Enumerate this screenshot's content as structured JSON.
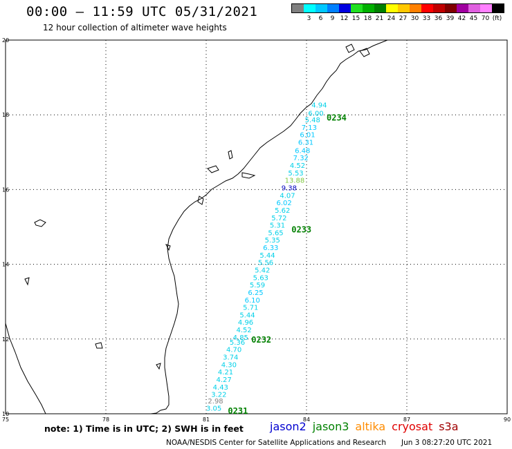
{
  "header": {
    "title": "00:00 – 11:59 UTC 05/31/2021",
    "subtitle": "12 hour collection of altimeter wave heights"
  },
  "legend": {
    "unit": "(ft)",
    "items": [
      {
        "label": "",
        "color": "#808080"
      },
      {
        "label": "3",
        "color": "#00ffff"
      },
      {
        "label": "6",
        "color": "#00c8ff"
      },
      {
        "label": "9",
        "color": "#0080ff"
      },
      {
        "label": "12",
        "color": "#0000e0"
      },
      {
        "label": "15",
        "color": "#20e020"
      },
      {
        "label": "18",
        "color": "#00b000"
      },
      {
        "label": "21",
        "color": "#008000"
      },
      {
        "label": "24",
        "color": "#ffff00"
      },
      {
        "label": "27",
        "color": "#ffc800"
      },
      {
        "label": "30",
        "color": "#ff8000"
      },
      {
        "label": "33",
        "color": "#ff0000"
      },
      {
        "label": "36",
        "color": "#c00000"
      },
      {
        "label": "39",
        "color": "#800000"
      },
      {
        "label": "42",
        "color": "#a000a0"
      },
      {
        "label": "45",
        "color": "#e060e0"
      },
      {
        "label": "70",
        "color": "#ff80ff"
      },
      {
        "label": "",
        "color": "#000000"
      }
    ]
  },
  "map": {
    "lon_ticks": [
      "75",
      "78",
      "81",
      "84",
      "87",
      "90"
    ],
    "lat_ticks": [
      "20",
      "18",
      "16",
      "14",
      "12",
      "10"
    ],
    "pass_labels": [
      {
        "label": "0234",
        "lon": 84.6,
        "lat": 17.85
      },
      {
        "label": "0233",
        "lon": 83.55,
        "lat": 14.85
      },
      {
        "label": "0232",
        "lon": 82.35,
        "lat": 11.9
      },
      {
        "label": "0231",
        "lon": 81.65,
        "lat": 10.0
      }
    ],
    "wave_heights": [
      {
        "v": "4.94",
        "lon": 84.15,
        "lat": 18.2,
        "c": "#00d0e8"
      },
      {
        "v": "6.00",
        "lon": 84.05,
        "lat": 17.98,
        "c": "#00d0e8"
      },
      {
        "v": "5.48",
        "lon": 83.95,
        "lat": 17.8,
        "c": "#00d0e8"
      },
      {
        "v": "7.13",
        "lon": 83.85,
        "lat": 17.6,
        "c": "#00c8ff"
      },
      {
        "v": "6.01",
        "lon": 83.8,
        "lat": 17.4,
        "c": "#00c8ff"
      },
      {
        "v": "6.31",
        "lon": 83.75,
        "lat": 17.2,
        "c": "#00c8ff"
      },
      {
        "v": "6.48",
        "lon": 83.65,
        "lat": 16.98,
        "c": "#00c8ff"
      },
      {
        "v": "7.32",
        "lon": 83.6,
        "lat": 16.78,
        "c": "#00c8ff"
      },
      {
        "v": "4.52",
        "lon": 83.5,
        "lat": 16.58,
        "c": "#00d0e8"
      },
      {
        "v": "5.53",
        "lon": 83.45,
        "lat": 16.38,
        "c": "#00d0e8"
      },
      {
        "v": "13.88",
        "lon": 83.35,
        "lat": 16.18,
        "c": "#80c840"
      },
      {
        "v": "9.38",
        "lon": 83.25,
        "lat": 15.98,
        "c": "#0000c0"
      },
      {
        "v": "4.07",
        "lon": 83.2,
        "lat": 15.78,
        "c": "#00d0e8"
      },
      {
        "v": "6.02",
        "lon": 83.1,
        "lat": 15.58,
        "c": "#00c8ff"
      },
      {
        "v": "5.62",
        "lon": 83.05,
        "lat": 15.38,
        "c": "#00d0e8"
      },
      {
        "v": "5.72",
        "lon": 82.95,
        "lat": 15.18,
        "c": "#00d0e8"
      },
      {
        "v": "5.31",
        "lon": 82.9,
        "lat": 14.98,
        "c": "#00d0e8"
      },
      {
        "v": "5.65",
        "lon": 82.85,
        "lat": 14.78,
        "c": "#00d0e8"
      },
      {
        "v": "5.35",
        "lon": 82.75,
        "lat": 14.58,
        "c": "#00d0e8"
      },
      {
        "v": "6.33",
        "lon": 82.7,
        "lat": 14.38,
        "c": "#00c8ff"
      },
      {
        "v": "5.44",
        "lon": 82.6,
        "lat": 14.18,
        "c": "#00d0e8"
      },
      {
        "v": "5.56",
        "lon": 82.55,
        "lat": 13.98,
        "c": "#00d0e8"
      },
      {
        "v": "5.42",
        "lon": 82.45,
        "lat": 13.78,
        "c": "#00d0e8"
      },
      {
        "v": "5.63",
        "lon": 82.4,
        "lat": 13.58,
        "c": "#00d0e8"
      },
      {
        "v": "5.59",
        "lon": 82.3,
        "lat": 13.38,
        "c": "#00d0e8"
      },
      {
        "v": "6.25",
        "lon": 82.25,
        "lat": 13.18,
        "c": "#00c8ff"
      },
      {
        "v": "6.10",
        "lon": 82.15,
        "lat": 12.98,
        "c": "#00c8ff"
      },
      {
        "v": "5.71",
        "lon": 82.1,
        "lat": 12.78,
        "c": "#00d0e8"
      },
      {
        "v": "5.44",
        "lon": 82.0,
        "lat": 12.58,
        "c": "#00d0e8"
      },
      {
        "v": "4.96",
        "lon": 81.95,
        "lat": 12.38,
        "c": "#00d0e8"
      },
      {
        "v": "4.52",
        "lon": 81.9,
        "lat": 12.18,
        "c": "#00d0e8"
      },
      {
        "v": "4.85",
        "lon": 81.8,
        "lat": 11.98,
        "c": "#00d0e8"
      },
      {
        "v": "5.36",
        "lon": 81.7,
        "lat": 11.85,
        "c": "#00d0e8"
      },
      {
        "v": "4.70",
        "lon": 81.6,
        "lat": 11.65,
        "c": "#00d0e8"
      },
      {
        "v": "3.74",
        "lon": 81.5,
        "lat": 11.45,
        "c": "#00d0e8"
      },
      {
        "v": "4.30",
        "lon": 81.45,
        "lat": 11.25,
        "c": "#00d0e8"
      },
      {
        "v": "4.21",
        "lon": 81.35,
        "lat": 11.05,
        "c": "#00d0e8"
      },
      {
        "v": "4.27",
        "lon": 81.3,
        "lat": 10.85,
        "c": "#00d0e8"
      },
      {
        "v": "4.43",
        "lon": 81.2,
        "lat": 10.65,
        "c": "#00d0e8"
      },
      {
        "v": "3.22",
        "lon": 81.15,
        "lat": 10.45,
        "c": "#00d0e8"
      },
      {
        "v": "2.98",
        "lon": 81.05,
        "lat": 10.28,
        "c": "#808080"
      },
      {
        "v": "3.05",
        "lon": 81.0,
        "lat": 10.08,
        "c": "#00d0e8"
      }
    ]
  },
  "footer": {
    "note": "note:  1) Time is in UTC;  2) SWH is in feet",
    "satellites": [
      {
        "name": "jason2",
        "color": "#0000d0"
      },
      {
        "name": "jason3",
        "color": "#008000"
      },
      {
        "name": "altika",
        "color": "#ff8c00"
      },
      {
        "name": "cryosat",
        "color": "#e00000"
      },
      {
        "name": "s3a",
        "color": "#a00000"
      }
    ],
    "credit": "NOAA/NESDIS Center for Satellite Applications and Research",
    "timestamp": "Jun  3 08:27:20 UTC 2021"
  }
}
